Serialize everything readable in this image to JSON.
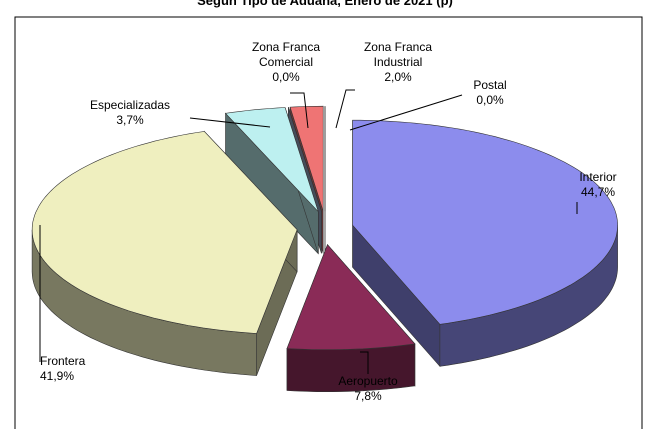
{
  "chart_data": {
    "type": "pie3d",
    "title": "Según Tipo de Aduana, Enero de 2021 (p)",
    "categories": [
      "Interior",
      "Aeropuerto",
      "Frontera",
      "Especializadas",
      "Zona Franca Comercial",
      "Zona Franca Industrial",
      "Postal"
    ],
    "values": [
      44.7,
      7.8,
      41.9,
      3.7,
      0.0,
      2.0,
      0.0
    ],
    "value_labels": [
      "44,7%",
      "7,8%",
      "41,9%",
      "3,7%",
      "0,0%",
      "2,0%",
      "0,0%"
    ],
    "colors": [
      "#8c8ced",
      "#8a2b57",
      "#efefbf",
      "#bdf0f0",
      "#9aa8c8",
      "#ef7474",
      "#b0b0e0"
    ]
  }
}
